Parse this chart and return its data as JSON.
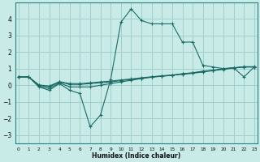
{
  "xlabel": "Humidex (Indice chaleur)",
  "background_color": "#c8ebe8",
  "grid_color": "#a0d0cc",
  "line_color": "#1a6b65",
  "x_values": [
    0,
    1,
    2,
    3,
    4,
    5,
    6,
    7,
    8,
    9,
    10,
    11,
    12,
    13,
    14,
    15,
    16,
    17,
    18,
    19,
    20,
    21,
    22,
    23
  ],
  "line1": [
    0.5,
    0.5,
    -0.1,
    -0.3,
    0.1,
    -0.3,
    -0.5,
    -2.5,
    -1.8,
    0.35,
    3.8,
    4.6,
    3.9,
    3.7,
    3.7,
    3.7,
    2.6,
    2.6,
    1.2,
    1.1,
    1.0,
    1.05,
    0.5,
    1.1
  ],
  "line2": [
    0.5,
    0.5,
    -0.05,
    -0.2,
    0.15,
    -0.1,
    -0.1,
    -0.1,
    0.0,
    0.1,
    0.2,
    0.3,
    0.4,
    0.5,
    0.55,
    0.6,
    0.7,
    0.75,
    0.85,
    0.9,
    1.0,
    1.05,
    1.1,
    1.1
  ],
  "line3": [
    0.5,
    0.5,
    0.0,
    -0.1,
    0.2,
    0.05,
    0.05,
    0.1,
    0.15,
    0.2,
    0.28,
    0.35,
    0.42,
    0.48,
    0.54,
    0.6,
    0.66,
    0.72,
    0.8,
    0.88,
    0.96,
    1.03,
    1.1,
    1.1
  ],
  "line4": [
    0.5,
    0.5,
    0.02,
    -0.05,
    0.22,
    0.1,
    0.1,
    0.15,
    0.2,
    0.25,
    0.32,
    0.38,
    0.45,
    0.51,
    0.57,
    0.62,
    0.68,
    0.74,
    0.83,
    0.9,
    0.98,
    1.05,
    1.12,
    1.12
  ],
  "ylim": [
    -3.5,
    5.0
  ],
  "yticks": [
    -3,
    -2,
    -1,
    0,
    1,
    2,
    3,
    4
  ],
  "xlim": [
    -0.3,
    23.3
  ]
}
